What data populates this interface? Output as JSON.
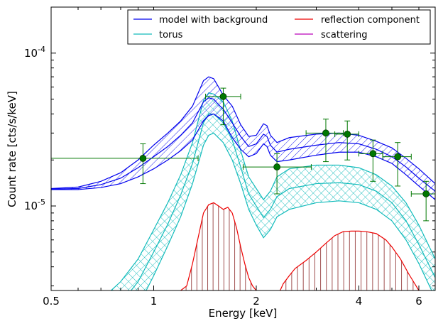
{
  "chart_data": {
    "type": "line",
    "title": "",
    "xlabel": "Energy [keV]",
    "ylabel": "Count rate [cts/s/keV]",
    "xscale": "log",
    "yscale": "log",
    "xlim": [
      0.5,
      6.7
    ],
    "ylim": [
      2.8e-06,
      0.0002
    ],
    "grid": false,
    "legend_position": "top-right",
    "x_tick_labels": [
      {
        "value": 0.5,
        "label": "0.5"
      },
      {
        "value": 1,
        "label": "1"
      },
      {
        "value": 2,
        "label": "2"
      },
      {
        "value": 4,
        "label": "4"
      },
      {
        "value": 6,
        "label": "6"
      }
    ],
    "y_tick_labels": [
      {
        "value": 1e-05,
        "base": "10",
        "exp": "-5"
      },
      {
        "value": 0.0001,
        "base": "10",
        "exp": "-4"
      }
    ],
    "legend": [
      {
        "label": "model with background",
        "color": "#0000ee"
      },
      {
        "label": "reflection component",
        "color": "#ee0000"
      },
      {
        "label": "torus",
        "color": "#11bbbb"
      },
      {
        "label": "scattering",
        "color": "#bb00bb"
      }
    ],
    "bands": [
      {
        "name": "model with background",
        "color": "#0000ee",
        "hatch": "diagonal",
        "x": [
          0.5,
          0.6,
          0.7,
          0.8,
          0.9,
          1.0,
          1.1,
          1.2,
          1.3,
          1.4,
          1.45,
          1.5,
          1.55,
          1.6,
          1.7,
          1.8,
          1.9,
          2.0,
          2.1,
          2.15,
          2.2,
          2.3,
          2.5,
          3.0,
          3.5,
          4.0,
          4.5,
          5.0,
          5.5,
          6.0,
          6.7
        ],
        "upper": [
          1.3e-05,
          1.33e-05,
          1.45e-05,
          1.65e-05,
          2e-05,
          2.5e-05,
          3e-05,
          3.6e-05,
          4.5e-05,
          6.6e-05,
          7e-05,
          6.8e-05,
          6e-05,
          5.3e-05,
          4.5e-05,
          3.4e-05,
          2.85e-05,
          2.9e-05,
          3.45e-05,
          3.35e-05,
          2.9e-05,
          2.6e-05,
          2.8e-05,
          2.95e-05,
          3e-05,
          2.9e-05,
          2.65e-05,
          2.4e-05,
          2.05e-05,
          1.75e-05,
          1.4e-05
        ],
        "lower": [
          1.28e-05,
          1.28e-05,
          1.32e-05,
          1.4e-05,
          1.55e-05,
          1.75e-05,
          2e-05,
          2.3e-05,
          2.7e-05,
          3.6e-05,
          3.9e-05,
          4e-05,
          3.8e-05,
          3.6e-05,
          2.8e-05,
          2.35e-05,
          2.1e-05,
          2.2e-05,
          2.55e-05,
          2.45e-05,
          2.15e-05,
          1.95e-05,
          2e-05,
          2.15e-05,
          2.25e-05,
          2.25e-05,
          2.1e-05,
          1.9e-05,
          1.6e-05,
          1.35e-05,
          1.1e-05
        ],
        "median": [
          1.29e-05,
          1.3e-05,
          1.38e-05,
          1.52e-05,
          1.78e-05,
          2.1e-05,
          2.45e-05,
          2.9e-05,
          3.5e-05,
          4.8e-05,
          5.1e-05,
          5e-05,
          4.6e-05,
          4.3e-05,
          3.5e-05,
          2.85e-05,
          2.45e-05,
          2.55e-05,
          2.95e-05,
          2.85e-05,
          2.5e-05,
          2.25e-05,
          2.35e-05,
          2.5e-05,
          2.6e-05,
          2.55e-05,
          2.35e-05,
          2.1e-05,
          1.8e-05,
          1.52e-05,
          1.25e-05
        ]
      },
      {
        "name": "torus",
        "color": "#11bbbb",
        "hatch": "cross",
        "x": [
          0.75,
          0.8,
          0.9,
          1.0,
          1.1,
          1.2,
          1.3,
          1.4,
          1.45,
          1.5,
          1.6,
          1.7,
          1.8,
          1.9,
          2.0,
          2.1,
          2.2,
          2.3,
          2.5,
          3.0,
          3.5,
          4.0,
          4.5,
          5.0,
          5.5,
          6.0,
          6.7
        ],
        "upper": [
          2.8e-06,
          3.2e-06,
          4.5e-06,
          7e-06,
          1.05e-05,
          1.6e-05,
          2.6e-05,
          4.9e-05,
          5.5e-05,
          5.4e-05,
          4.8e-05,
          3.6e-05,
          2.3e-05,
          1.55e-05,
          1.3e-05,
          1.1e-05,
          1.25e-05,
          1.55e-05,
          1.75e-05,
          1.85e-05,
          1.85e-05,
          1.78e-05,
          1.6e-05,
          1.35e-05,
          1.05e-05,
          7.5e-06,
          4.5e-06
        ],
        "lower": [
          1.4e-06,
          1.6e-06,
          2.2e-06,
          3.5e-06,
          5.5e-06,
          8.5e-06,
          1.4e-05,
          2.5e-05,
          2.9e-05,
          3e-05,
          2.6e-05,
          2e-05,
          1.4e-05,
          9.5e-06,
          7.5e-06,
          6.2e-06,
          7e-06,
          8.5e-06,
          9.5e-06,
          1.05e-05,
          1.08e-05,
          1.05e-05,
          9.5e-06,
          8e-06,
          6e-06,
          4.2e-06,
          2.5e-06
        ],
        "median": [
          2e-06,
          2.3e-06,
          3.2e-06,
          5e-06,
          7.6e-06,
          1.18e-05,
          1.9e-05,
          3.5e-05,
          4e-05,
          4e-05,
          3.5e-05,
          2.7e-05,
          1.8e-05,
          1.2e-05,
          1e-05,
          8.4e-06,
          9.5e-06,
          1.15e-05,
          1.3e-05,
          1.4e-05,
          1.42e-05,
          1.38e-05,
          1.25e-05,
          1.05e-05,
          8e-06,
          5.6e-06,
          3.4e-06
        ]
      }
    ],
    "reflection": {
      "name": "reflection component",
      "color": "#ee0000",
      "stem_color": "#a05050",
      "segments": [
        {
          "x": [
            1.2,
            1.25,
            1.3,
            1.35,
            1.4,
            1.45,
            1.5,
            1.55,
            1.6,
            1.65,
            1.7,
            1.75,
            1.8,
            1.85,
            1.9,
            1.95,
            2.0
          ],
          "y": [
            2.8e-06,
            3e-06,
            4.2e-06,
            6.2e-06,
            9e-06,
            1.02e-05,
            1.05e-05,
            1e-05,
            9.5e-06,
            9.8e-06,
            9e-06,
            7.2e-06,
            5.4e-06,
            4.2e-06,
            3.4e-06,
            3e-06,
            2.8e-06
          ]
        },
        {
          "x": [
            2.35,
            2.4,
            2.5,
            2.6,
            2.8,
            3.0,
            3.2,
            3.4,
            3.6,
            3.8,
            4.0,
            4.2,
            4.5,
            4.8,
            5.0,
            5.3,
            5.6,
            6.0
          ],
          "y": [
            2.8e-06,
            3.1e-06,
            3.5e-06,
            3.9e-06,
            4.4e-06,
            5e-06,
            5.7e-06,
            6.4e-06,
            6.8e-06,
            6.85e-06,
            6.85e-06,
            6.8e-06,
            6.6e-06,
            6e-06,
            5.4e-06,
            4.5e-06,
            3.6e-06,
            2.8e-06
          ]
        }
      ]
    },
    "data_points": {
      "color": "#007700",
      "points": [
        {
          "x": 0.93,
          "y": 2.05e-05,
          "xlo": 0.5,
          "xhi": 1.35,
          "ylo": 1.4e-05,
          "yhi": 2.55e-05
        },
        {
          "x": 1.6,
          "y": 5.2e-05,
          "xlo": 1.42,
          "xhi": 1.8,
          "ylo": 3.4e-05,
          "yhi": 5.9e-05
        },
        {
          "x": 2.3,
          "y": 1.8e-05,
          "xlo": 1.83,
          "xhi": 2.9,
          "ylo": 1.2e-05,
          "yhi": 2.2e-05
        },
        {
          "x": 3.2,
          "y": 3e-05,
          "xlo": 2.8,
          "xhi": 3.6,
          "ylo": 1.95e-05,
          "yhi": 3.7e-05
        },
        {
          "x": 3.7,
          "y": 2.95e-05,
          "xlo": 3.4,
          "xhi": 4.0,
          "ylo": 2e-05,
          "yhi": 3.6e-05
        },
        {
          "x": 4.4,
          "y": 2.2e-05,
          "xlo": 4.0,
          "xhi": 4.7,
          "ylo": 1.45e-05,
          "yhi": 2.7e-05
        },
        {
          "x": 5.2,
          "y": 2.1e-05,
          "xlo": 4.7,
          "xhi": 5.7,
          "ylo": 1.35e-05,
          "yhi": 2.6e-05
        },
        {
          "x": 6.3,
          "y": 1.2e-05,
          "xlo": 5.7,
          "xhi": 6.7,
          "ylo": 8e-06,
          "yhi": 1.45e-05
        }
      ]
    }
  }
}
